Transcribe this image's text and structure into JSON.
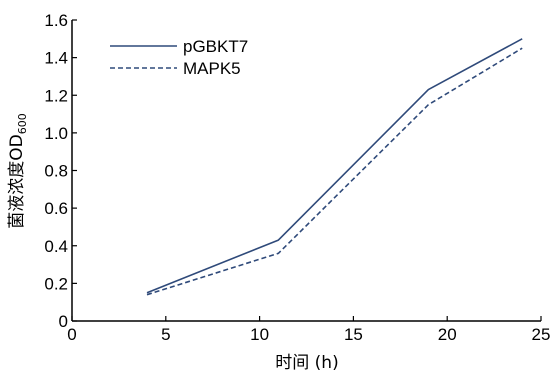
{
  "chart_data": {
    "type": "line",
    "xlabel": "时间 (h)",
    "ylabel": "菌液浓度OD",
    "ylabel_subscript": "600",
    "xlim": [
      0,
      25
    ],
    "ylim": [
      0,
      1.6
    ],
    "xticks": [
      0,
      5,
      10,
      15,
      20,
      25
    ],
    "yticks": [
      0,
      0.2,
      0.4,
      0.6,
      0.8,
      1.0,
      1.2,
      1.4,
      1.6
    ],
    "xtick_labels": [
      "0",
      "5",
      "10",
      "15",
      "20",
      "25"
    ],
    "ytick_labels": [
      "0",
      "0.2",
      "0.4",
      "0.6",
      "0.8",
      "1.0",
      "1.2",
      "1.4",
      "1.6"
    ],
    "grid": false,
    "legend_position": "top-left",
    "series": [
      {
        "name": "pGBKT7",
        "style": "solid",
        "color": "#2f4a7a",
        "x": [
          4,
          11,
          19,
          24
        ],
        "y": [
          0.15,
          0.43,
          1.23,
          1.5
        ]
      },
      {
        "name": "MAPK5",
        "style": "dashed",
        "color": "#2f4a7a",
        "x": [
          4,
          11,
          19,
          24
        ],
        "y": [
          0.14,
          0.36,
          1.15,
          1.45
        ]
      }
    ]
  }
}
